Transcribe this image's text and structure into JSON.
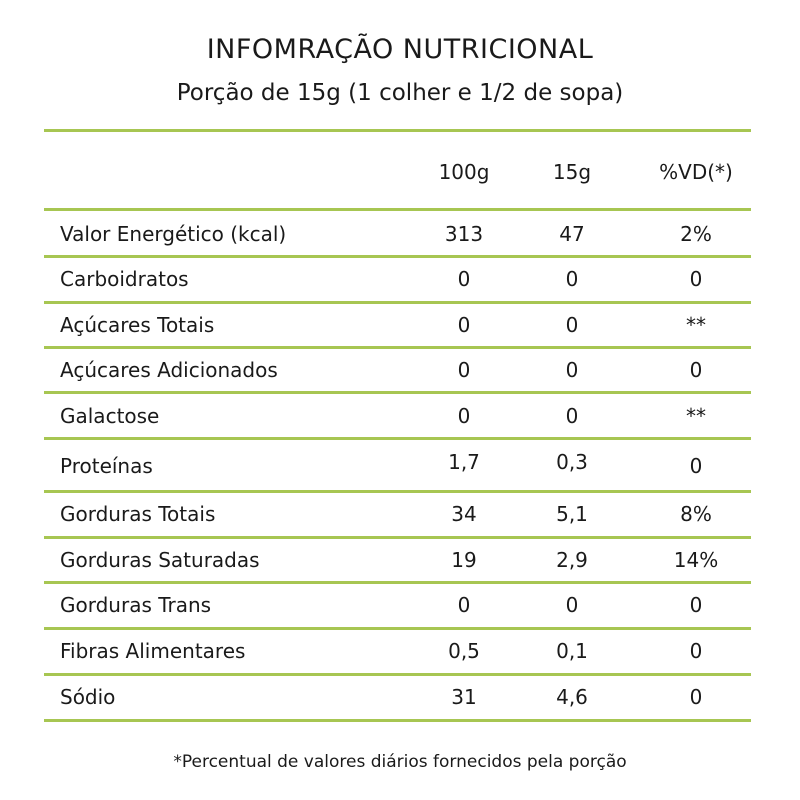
{
  "header": {
    "title": "INFOMRAÇÃO NUTRICIONAL",
    "subtitle": "Porção de 15g (1 colher e 1/2 de sopa)"
  },
  "table": {
    "columns": [
      "100g",
      "15g",
      "%VD(*)"
    ],
    "rows": [
      {
        "label": "Valor Energético (kcal)",
        "v100": "313",
        "v15": "47",
        "vd": "2%"
      },
      {
        "label": "Carboidratos",
        "v100": "0",
        "v15": "0",
        "vd": "0"
      },
      {
        "label": "Açúcares Totais",
        "v100": "0",
        "v15": "0",
        "vd": "**"
      },
      {
        "label": "Açúcares Adicionados",
        "v100": "0",
        "v15": "0",
        "vd": "0"
      },
      {
        "label": "Galactose",
        "v100": "0",
        "v15": "0",
        "vd": "**"
      },
      {
        "label": "Proteínas",
        "v100": "1,7",
        "v15": "0,3",
        "vd": "0"
      },
      {
        "label": "Gorduras Totais",
        "v100": "34",
        "v15": "5,1",
        "vd": "8%"
      },
      {
        "label": "Gorduras Saturadas",
        "v100": "19",
        "v15": "2,9",
        "vd": "14%"
      },
      {
        "label": "Gorduras Trans",
        "v100": "0",
        "v15": "0",
        "vd": "0"
      },
      {
        "label": "Fibras Alimentares",
        "v100": "0,5",
        "v15": "0,1",
        "vd": "0"
      },
      {
        "label": "Sódio",
        "v100": "31",
        "v15": "4,6",
        "vd": "0"
      }
    ]
  },
  "footnote": "*Percentual de valores diários fornecidos pela porção",
  "colors": {
    "rule": "#a7c652",
    "text": "#1a1a1a"
  }
}
